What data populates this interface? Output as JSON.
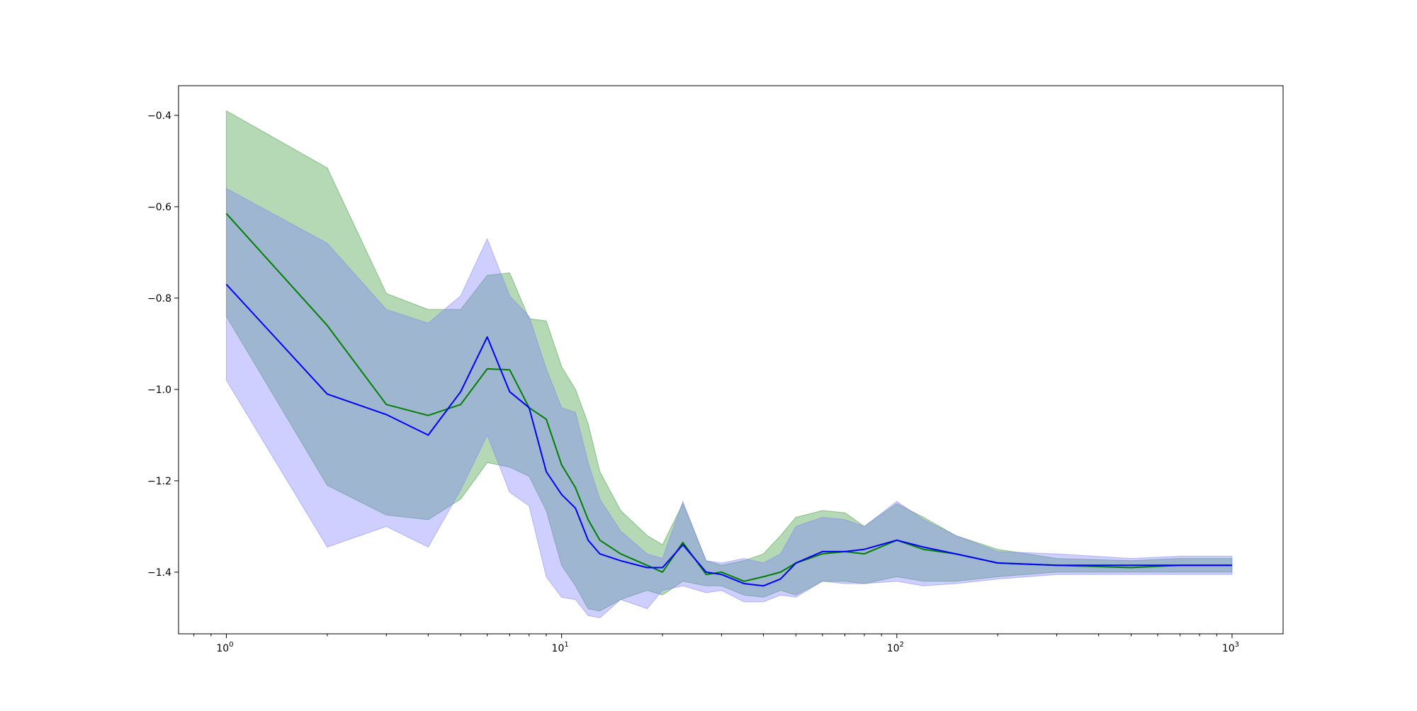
{
  "chart_data": {
    "type": "line",
    "title": "",
    "xlabel": "",
    "ylabel": "",
    "xscale": "log",
    "xlim": [
      0.72,
      1420
    ],
    "ylim": [
      -1.535,
      -0.335
    ],
    "grid": false,
    "legend": "none",
    "x_ticks": [
      {
        "value": 1,
        "base": "10",
        "exp": "0"
      },
      {
        "value": 10,
        "base": "10",
        "exp": "1"
      },
      {
        "value": 100,
        "base": "10",
        "exp": "2"
      },
      {
        "value": 1000,
        "base": "10",
        "exp": "3"
      }
    ],
    "y_ticks": [
      {
        "value": -0.4,
        "label": "−0.4"
      },
      {
        "value": -0.6,
        "label": "−0.6"
      },
      {
        "value": -0.8,
        "label": "−0.8"
      },
      {
        "value": -1.0,
        "label": "−1.0"
      },
      {
        "value": -1.2,
        "label": "−1.2"
      },
      {
        "value": -1.4,
        "label": "−1.4"
      }
    ],
    "series": [
      {
        "color": "#008000",
        "band_color": "#3a9a3a",
        "x": [
          1,
          2,
          3,
          4,
          5,
          6,
          7,
          8,
          9,
          10,
          11,
          12,
          13,
          15,
          18,
          20,
          23,
          27,
          30,
          35,
          40,
          45,
          50,
          60,
          70,
          80,
          100,
          120,
          150,
          200,
          300,
          500,
          700,
          1000
        ],
        "y": [
          -0.615,
          -0.86,
          -1.033,
          -1.057,
          -1.033,
          -0.955,
          -0.957,
          -1.04,
          -1.065,
          -1.165,
          -1.215,
          -1.285,
          -1.33,
          -1.36,
          -1.385,
          -1.4,
          -1.335,
          -1.405,
          -1.4,
          -1.42,
          -1.41,
          -1.4,
          -1.38,
          -1.36,
          -1.355,
          -1.36,
          -1.33,
          -1.35,
          -1.36,
          -1.38,
          -1.385,
          -1.39,
          -1.385,
          -1.385
        ],
        "upper": [
          -0.39,
          -0.515,
          -0.79,
          -0.825,
          -0.825,
          -0.75,
          -0.745,
          -0.845,
          -0.85,
          -0.95,
          -1.0,
          -1.075,
          -1.18,
          -1.265,
          -1.32,
          -1.34,
          -1.25,
          -1.375,
          -1.385,
          -1.375,
          -1.36,
          -1.32,
          -1.28,
          -1.265,
          -1.27,
          -1.3,
          -1.25,
          -1.28,
          -1.32,
          -1.35,
          -1.37,
          -1.375,
          -1.37,
          -1.37
        ],
        "lower": [
          -0.84,
          -1.21,
          -1.275,
          -1.285,
          -1.24,
          -1.16,
          -1.17,
          -1.19,
          -1.265,
          -1.385,
          -1.43,
          -1.48,
          -1.485,
          -1.46,
          -1.44,
          -1.45,
          -1.42,
          -1.43,
          -1.43,
          -1.45,
          -1.455,
          -1.44,
          -1.45,
          -1.42,
          -1.42,
          -1.425,
          -1.41,
          -1.42,
          -1.42,
          -1.41,
          -1.4,
          -1.4,
          -1.4,
          -1.4
        ]
      },
      {
        "color": "#0000ff",
        "band_color": "#7f7fff",
        "x": [
          1,
          2,
          3,
          4,
          5,
          6,
          7,
          8,
          9,
          10,
          11,
          12,
          13,
          15,
          18,
          20,
          23,
          27,
          30,
          35,
          40,
          45,
          50,
          60,
          70,
          80,
          100,
          120,
          150,
          200,
          300,
          500,
          700,
          1000
        ],
        "y": [
          -0.77,
          -1.01,
          -1.055,
          -1.1,
          -1.005,
          -0.885,
          -1.005,
          -1.04,
          -1.18,
          -1.23,
          -1.26,
          -1.33,
          -1.36,
          -1.375,
          -1.39,
          -1.39,
          -1.34,
          -1.4,
          -1.405,
          -1.425,
          -1.43,
          -1.415,
          -1.38,
          -1.355,
          -1.355,
          -1.35,
          -1.33,
          -1.345,
          -1.36,
          -1.38,
          -1.385,
          -1.385,
          -1.385,
          -1.385
        ],
        "upper": [
          -0.56,
          -0.68,
          -0.825,
          -0.855,
          -0.795,
          -0.67,
          -0.795,
          -0.84,
          -0.955,
          -1.04,
          -1.05,
          -1.16,
          -1.24,
          -1.31,
          -1.36,
          -1.37,
          -1.245,
          -1.375,
          -1.38,
          -1.37,
          -1.38,
          -1.36,
          -1.3,
          -1.28,
          -1.285,
          -1.3,
          -1.245,
          -1.285,
          -1.32,
          -1.355,
          -1.36,
          -1.37,
          -1.365,
          -1.365
        ],
        "lower": [
          -0.98,
          -1.345,
          -1.3,
          -1.345,
          -1.22,
          -1.1,
          -1.225,
          -1.255,
          -1.41,
          -1.455,
          -1.46,
          -1.495,
          -1.5,
          -1.46,
          -1.48,
          -1.44,
          -1.43,
          -1.445,
          -1.44,
          -1.465,
          -1.465,
          -1.45,
          -1.455,
          -1.42,
          -1.425,
          -1.425,
          -1.42,
          -1.43,
          -1.425,
          -1.415,
          -1.405,
          -1.405,
          -1.405,
          -1.405
        ]
      }
    ]
  }
}
